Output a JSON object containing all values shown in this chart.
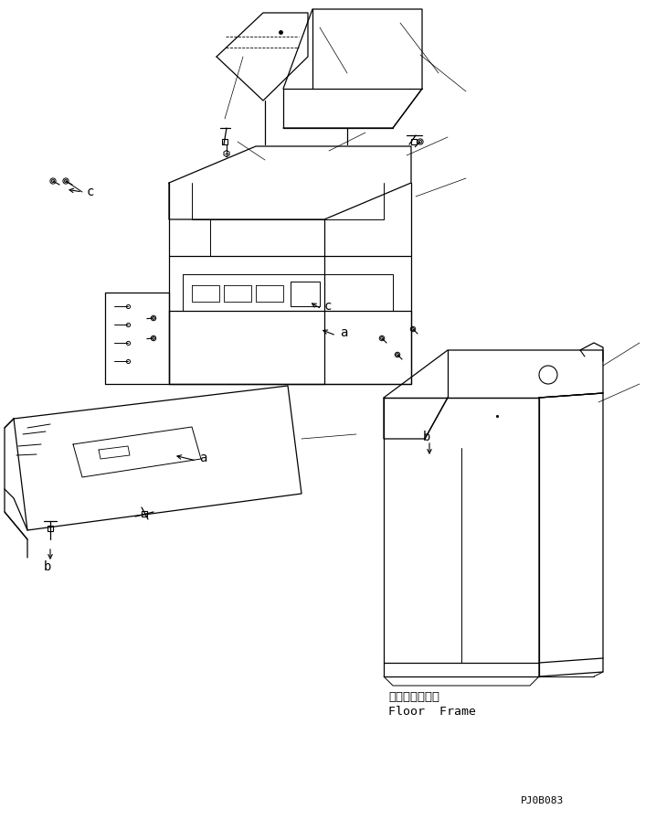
{
  "bg_color": "#ffffff",
  "line_color": "#000000",
  "part_number": "PJ0B083",
  "floor_frame_jp": "フロアフレーム",
  "floor_frame_en": "Floor  Frame",
  "fig_width": 7.18,
  "fig_height": 8.97,
  "dpi": 100
}
